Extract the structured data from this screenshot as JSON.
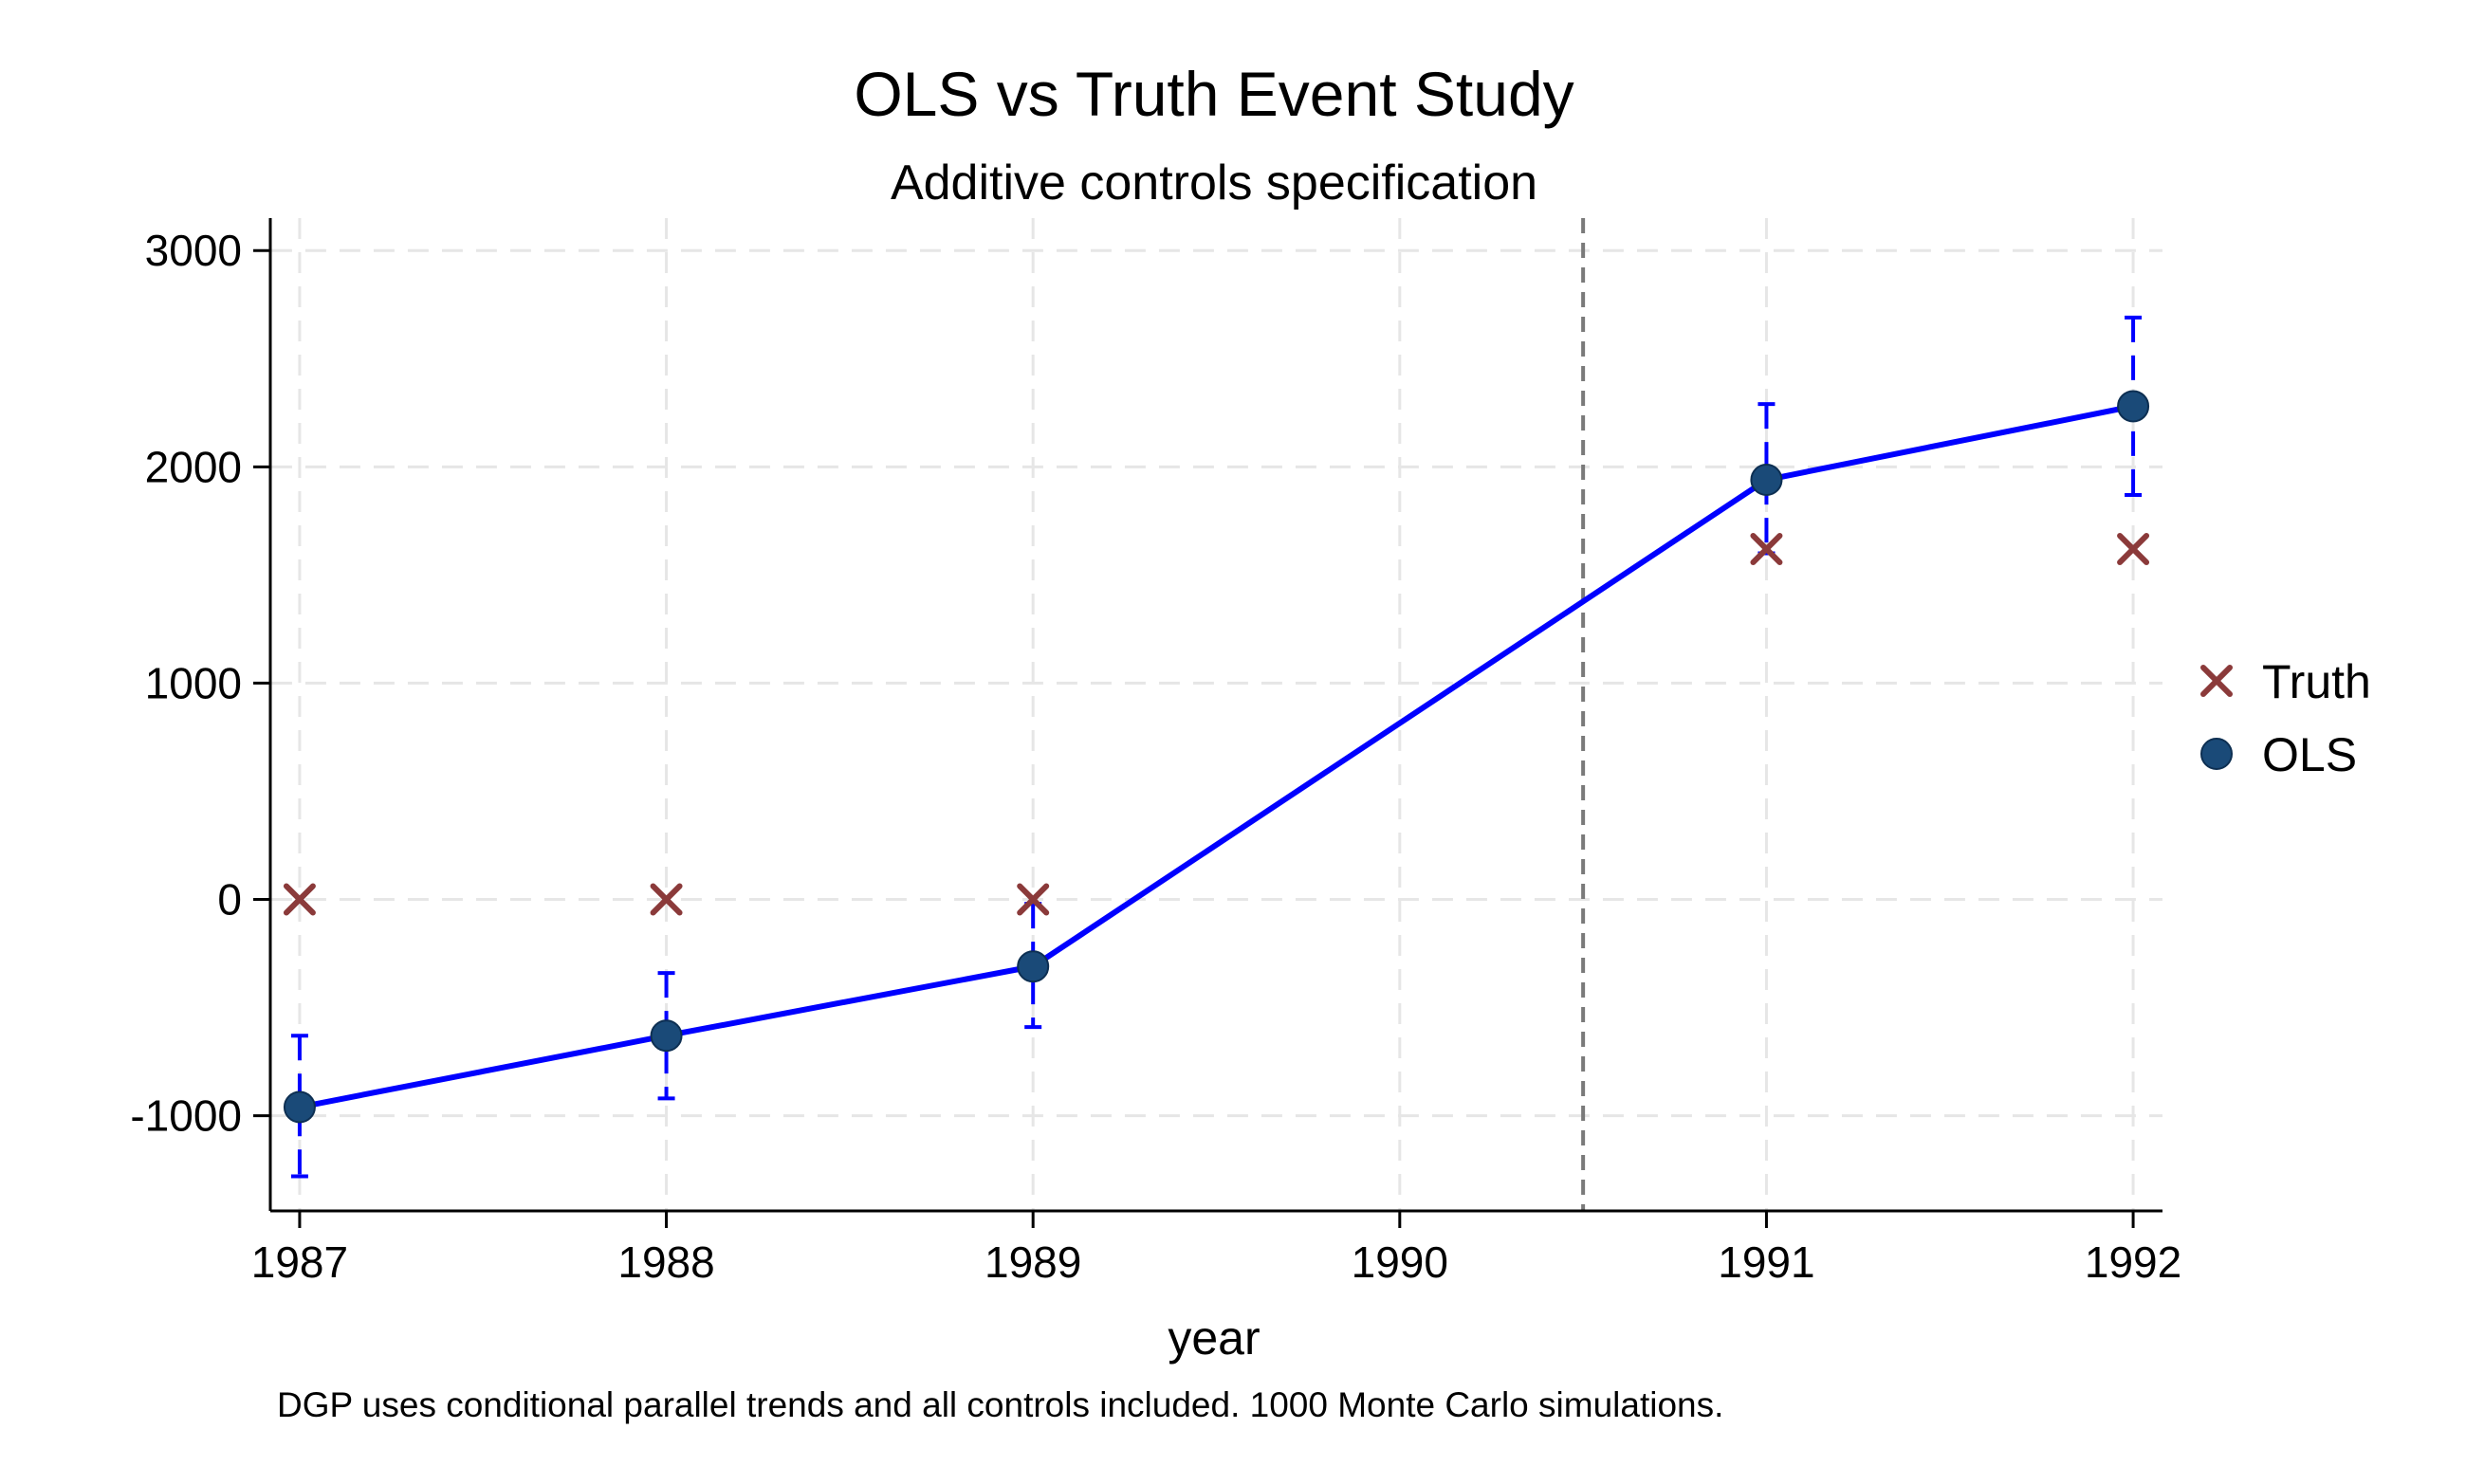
{
  "chart_data": {
    "type": "line",
    "title": "OLS vs Truth Event Study",
    "subtitle": "Additive controls specification",
    "xlabel": "year",
    "ylabel": "",
    "note": "DGP uses conditional parallel trends and all controls included. 1000 Monte Carlo simulations.",
    "x": [
      1987,
      1988,
      1989,
      1991,
      1992
    ],
    "xticks": [
      1987,
      1988,
      1989,
      1990,
      1991,
      1992
    ],
    "yticks": [
      -1000,
      0,
      1000,
      2000,
      3000
    ],
    "xlim": [
      1986.92,
      1992.08
    ],
    "ylim": [
      -1440,
      3150
    ],
    "treatment_line_x": 1990.5,
    "grid": true,
    "legend_position": "right",
    "colors": {
      "ols_line": "#0000ff",
      "ols_marker": "#1a4a78",
      "ci": "#0000ff",
      "truth": "#8b3a3a",
      "grid": "#e6e6e6",
      "vline": "#7a7a7a"
    },
    "series": [
      {
        "name": "Truth",
        "marker": "x",
        "values": [
          0,
          0,
          0,
          1620,
          1620
        ]
      },
      {
        "name": "OLS",
        "marker": "circle",
        "values": [
          -960,
          -630,
          -310,
          1940,
          2280
        ],
        "ci_low": [
          -1280,
          -920,
          -590,
          1600,
          1870
        ],
        "ci_high": [
          -630,
          -340,
          -20,
          2290,
          2690
        ]
      }
    ]
  }
}
